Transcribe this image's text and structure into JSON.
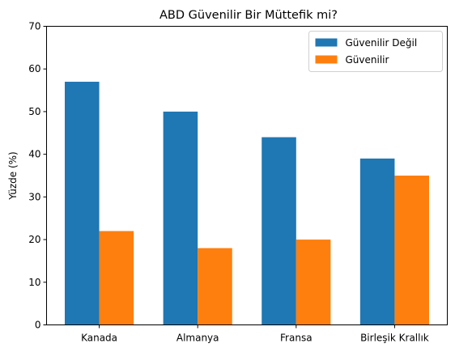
{
  "chart_data": {
    "type": "bar",
    "title": "ABD Güvenilir Bir Müttefik mi?",
    "xlabel": "",
    "ylabel": "Yüzde (%)",
    "ylim": [
      0,
      70
    ],
    "yticks": [
      0,
      10,
      20,
      30,
      40,
      50,
      60,
      70
    ],
    "categories": [
      "Kanada",
      "Almanya",
      "Fransa",
      "Birleşik Krallık"
    ],
    "series": [
      {
        "name": "Güvenilir Değil",
        "color": "#1f77b4",
        "values": [
          57,
          50,
          44,
          39
        ]
      },
      {
        "name": "Güvenilir",
        "color": "#ff7f0e",
        "values": [
          22,
          18,
          20,
          35
        ]
      }
    ],
    "grid": false,
    "legend_position": "top-right"
  }
}
